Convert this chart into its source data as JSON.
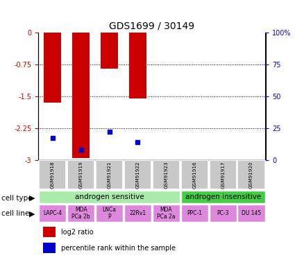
{
  "title": "GDS1699 / 30149",
  "samples": [
    "GSM91918",
    "GSM91919",
    "GSM91921",
    "GSM91922",
    "GSM91923",
    "GSM91916",
    "GSM91917",
    "GSM91920"
  ],
  "log2_ratio": [
    -1.65,
    -2.95,
    -0.85,
    -1.55,
    0.0,
    0.0,
    0.0,
    0.0
  ],
  "percentile_rank": [
    17,
    8,
    22,
    14,
    null,
    null,
    null,
    null
  ],
  "left_yticks": [
    0,
    -0.75,
    -1.5,
    -2.25,
    -3.0
  ],
  "left_yticklabels": [
    "0",
    "-0.75",
    "-1.5",
    "-2.25",
    "-3"
  ],
  "right_yticks": [
    100,
    75,
    50,
    25,
    0
  ],
  "right_yticklabels": [
    "100%",
    "75",
    "50",
    "25",
    "0"
  ],
  "cell_type_groups": [
    {
      "label": "androgen sensitive",
      "start": 0,
      "end": 4,
      "color": "#AAEAAA"
    },
    {
      "label": "androgen insensitive",
      "start": 5,
      "end": 7,
      "color": "#44CC44"
    }
  ],
  "cell_lines": [
    {
      "label": "LAPC-4",
      "idx": 0
    },
    {
      "label": "MDA\nPCa 2b",
      "idx": 1
    },
    {
      "label": "LNCa\nP",
      "idx": 2
    },
    {
      "label": "22Rv1",
      "idx": 3
    },
    {
      "label": "MDA\nPCa 2a",
      "idx": 4
    },
    {
      "label": "PPC-1",
      "idx": 5
    },
    {
      "label": "PC-3",
      "idx": 6
    },
    {
      "label": "DU 145",
      "idx": 7
    }
  ],
  "bar_color": "#CC0000",
  "dot_color": "#0000CC",
  "sample_bg": "#C8C8C8",
  "cell_line_color": "#DD88DD",
  "left_tick_color": "#CC0000",
  "right_tick_color": "#0000CC",
  "legend_items": [
    {
      "label": "log2 ratio",
      "color": "#CC0000"
    },
    {
      "label": "percentile rank within the sample",
      "color": "#0000CC"
    }
  ],
  "grid_lines": [
    -0.75,
    -1.5,
    -2.25
  ]
}
